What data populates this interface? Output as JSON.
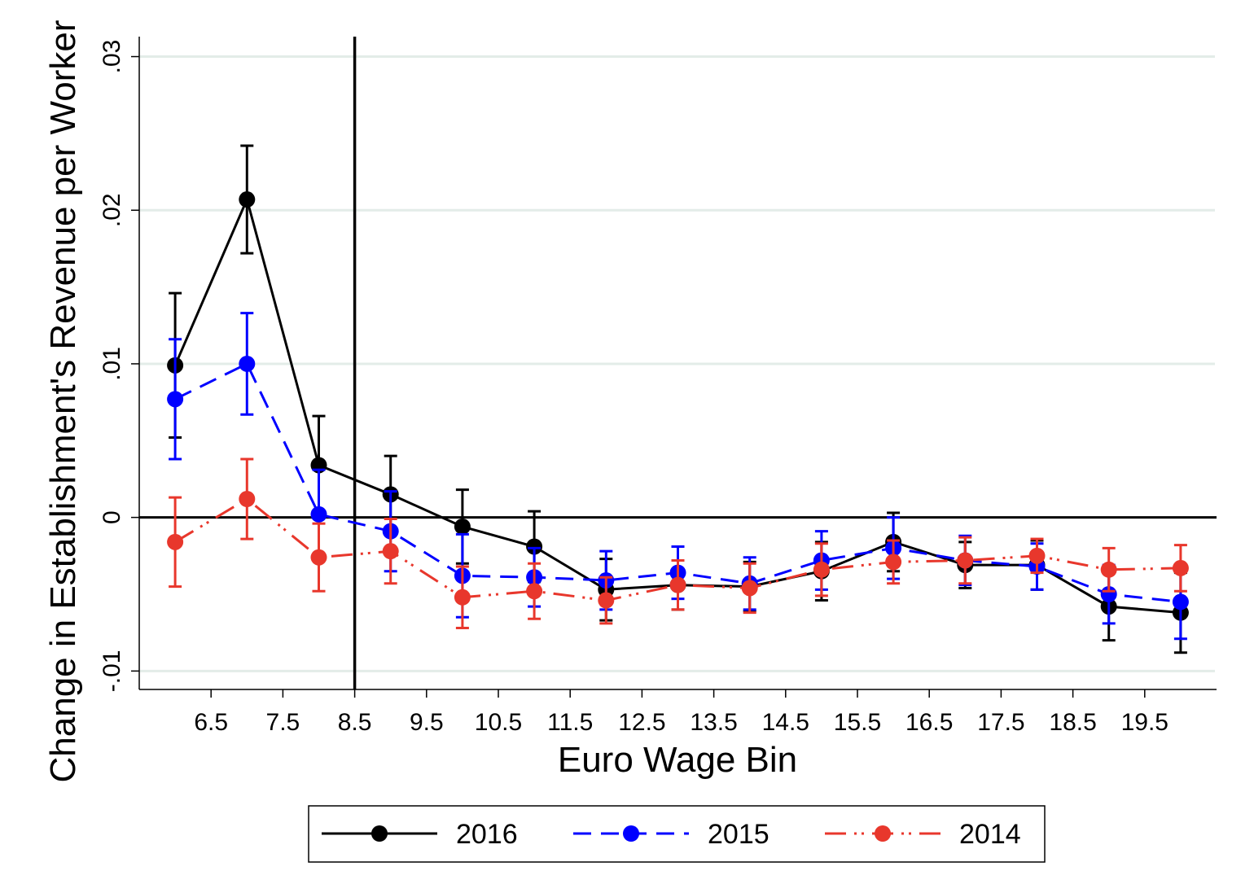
{
  "chart_data": {
    "type": "line",
    "xlabel": "Euro Wage Bin",
    "ylabel": "Change in Establishment's Revenue per Worker",
    "xlim": [
      5.5,
      20.5
    ],
    "ylim": [
      -0.0112,
      0.0313
    ],
    "x_ticks": [
      6.5,
      7.5,
      8.5,
      9.5,
      10.5,
      11.5,
      12.5,
      13.5,
      14.5,
      15.5,
      16.5,
      17.5,
      18.5,
      19.5
    ],
    "x_tick_labels": [
      "6.5",
      "7.5",
      "8.5",
      "9.5",
      "10.5",
      "11.5",
      "12.5",
      "13.5",
      "14.5",
      "15.5",
      "16.5",
      "17.5",
      "18.5",
      "19.5"
    ],
    "y_ticks": [
      -0.01,
      0,
      0.01,
      0.02,
      0.03
    ],
    "y_tick_labels": [
      "-.01",
      "0",
      ".01",
      ".02",
      ".03"
    ],
    "grid": true,
    "vertical_line_x": 8.5,
    "horizontal_line_y": 0,
    "legend_position": "bottom",
    "x": [
      6,
      7,
      8,
      9,
      10,
      11,
      12,
      13,
      14,
      15,
      16,
      17,
      18,
      19,
      20
    ],
    "series": [
      {
        "name": "2016",
        "color": "#000000",
        "dash": "solid",
        "values": [
          0.0099,
          0.0207,
          0.0034,
          0.0015,
          -0.0006,
          -0.0019,
          -0.0047,
          -0.0044,
          -0.0045,
          -0.0035,
          -0.0016,
          -0.0031,
          -0.0031,
          -0.0058,
          -0.0062
        ],
        "lower": [
          0.0052,
          0.0172,
          0.0,
          -0.001,
          -0.003,
          -0.0042,
          -0.0067,
          -0.006,
          -0.0061,
          -0.0054,
          -0.0035,
          -0.0046,
          -0.0047,
          -0.008,
          -0.0088
        ],
        "upper": [
          0.0146,
          0.0242,
          0.0066,
          0.004,
          0.0018,
          0.0004,
          -0.0027,
          -0.0028,
          -0.0029,
          -0.0016,
          0.0003,
          -0.0016,
          -0.0015,
          -0.0036,
          -0.0036
        ]
      },
      {
        "name": "2015",
        "color": "#0000ff",
        "dash": "dash",
        "values": [
          0.0077,
          0.01,
          0.0002,
          -0.0009,
          -0.0038,
          -0.0039,
          -0.0041,
          -0.0036,
          -0.0043,
          -0.0028,
          -0.002,
          -0.0028,
          -0.0032,
          -0.005,
          -0.0055
        ],
        "lower": [
          0.0038,
          0.0067,
          -0.0027,
          -0.0035,
          -0.0065,
          -0.0058,
          -0.006,
          -0.0053,
          -0.006,
          -0.0047,
          -0.004,
          -0.0044,
          -0.0047,
          -0.0069,
          -0.0079
        ],
        "upper": [
          0.0116,
          0.0133,
          0.0031,
          0.0017,
          -0.0011,
          -0.002,
          -0.0022,
          -0.0019,
          -0.0026,
          -0.0009,
          0.0,
          -0.0012,
          -0.0017,
          -0.0031,
          -0.0031
        ]
      },
      {
        "name": "2014",
        "color": "#e8372c",
        "dash": "dash-dot",
        "values": [
          -0.0016,
          0.0012,
          -0.0026,
          -0.0022,
          -0.0052,
          -0.0048,
          -0.0054,
          -0.0044,
          -0.0046,
          -0.0034,
          -0.0029,
          -0.0028,
          -0.0025,
          -0.0034,
          -0.0033
        ],
        "lower": [
          -0.0045,
          -0.0014,
          -0.0048,
          -0.0043,
          -0.0072,
          -0.0066,
          -0.0069,
          -0.006,
          -0.0062,
          -0.0051,
          -0.0043,
          -0.0043,
          -0.0036,
          -0.0048,
          -0.0048
        ],
        "upper": [
          0.0013,
          0.0038,
          -0.0004,
          -0.0001,
          -0.0032,
          -0.003,
          -0.0039,
          -0.0028,
          -0.003,
          -0.0017,
          -0.0015,
          -0.0013,
          -0.0014,
          -0.002,
          -0.0018
        ]
      }
    ]
  }
}
